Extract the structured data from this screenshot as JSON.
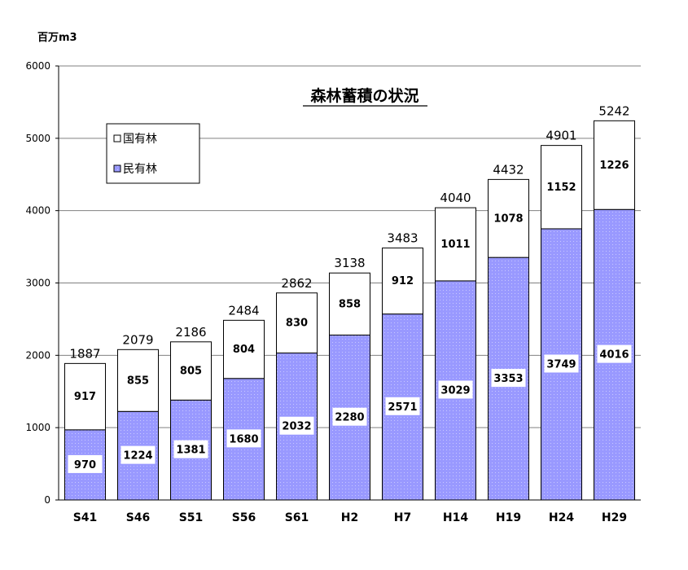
{
  "chart_data": {
    "type": "bar",
    "stacked": true,
    "title": "森林蓄積の状況",
    "ylabel": "百万m3",
    "xlabel": "",
    "ylim": [
      0,
      6000
    ],
    "yticks": [
      0,
      1000,
      2000,
      3000,
      4000,
      5000,
      6000
    ],
    "grid": true,
    "legend_position": "top-left",
    "categories": [
      "S41",
      "S46",
      "S51",
      "S56",
      "S61",
      "H2",
      "H7",
      "H14",
      "H19",
      "H24",
      "H29"
    ],
    "series": [
      {
        "name": "民有林",
        "color": "#9999ff",
        "values": [
          970,
          1224,
          1381,
          1680,
          2032,
          2280,
          2571,
          3029,
          3353,
          3749,
          4016
        ]
      },
      {
        "name": "国有林",
        "color": "#ffffff",
        "values": [
          917,
          855,
          805,
          804,
          830,
          858,
          912,
          1011,
          1078,
          1152,
          1226
        ]
      }
    ],
    "totals": [
      1887,
      2079,
      2186,
      2484,
      2862,
      3138,
      3483,
      4040,
      4432,
      4901,
      5242
    ]
  }
}
